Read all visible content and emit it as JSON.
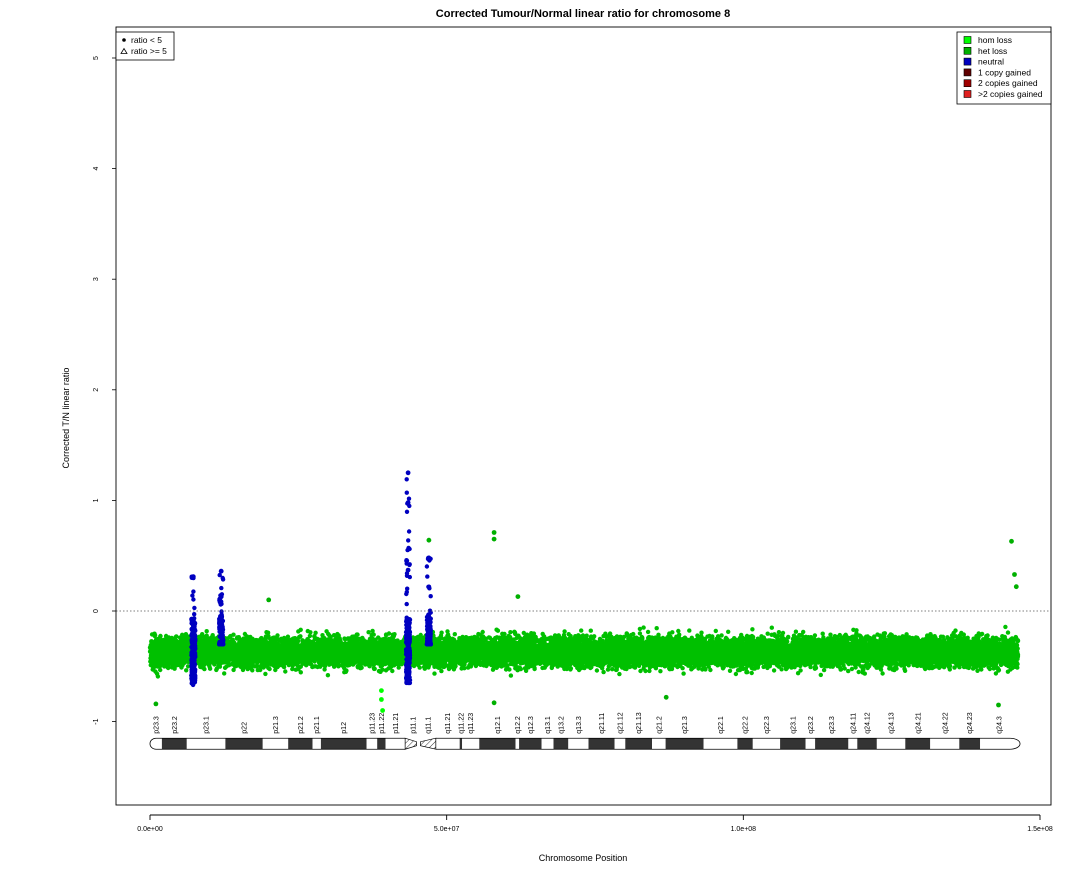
{
  "chart_data": {
    "type": "scatter",
    "title": "Corrected Tumour/Normal linear ratio for chromosome  8",
    "xlabel": "Chromosome Position",
    "ylabel": "Corrected T/N linear ratio",
    "xlim": [
      0,
      150000000
    ],
    "ylim": [
      -1.7,
      5.25
    ],
    "x_ticks": [
      0,
      50000000,
      100000000,
      150000000
    ],
    "x_tick_labels": [
      "0.0e+00",
      "5.0e+07",
      "1.0e+08",
      "1.5e+08"
    ],
    "y_ticks": [
      -1,
      0,
      1,
      2,
      3,
      4,
      5
    ],
    "y_tick_labels": [
      "-1",
      "0",
      "1",
      "2",
      "3",
      "4",
      "5"
    ],
    "reference_line_y": 0,
    "grid": false,
    "chromosome_length": 146300000,
    "centromere": [
      43000000,
      47500000
    ],
    "bulk_band": {
      "x_range": [
        0,
        146300000
      ],
      "y_range": [
        -0.65,
        -0.1
      ],
      "y_center": -0.37,
      "color": "#00c000",
      "category": "het loss"
    },
    "neutral_clusters": [
      {
        "x": 7300000,
        "y_range": [
          -0.85,
          0.31
        ]
      },
      {
        "x": 12000000,
        "y_range": [
          -0.3,
          0.36
        ]
      },
      {
        "x": 43500000,
        "y_range": [
          -0.65,
          1.25
        ]
      },
      {
        "x": 47000000,
        "y_range": [
          -0.3,
          0.48
        ]
      }
    ],
    "highlight_points": [
      {
        "x": 43500000,
        "y": 1.25,
        "category": "neutral"
      },
      {
        "x": 43500000,
        "y": 0.98,
        "category": "neutral"
      },
      {
        "x": 43500000,
        "y": 0.37,
        "category": "neutral"
      },
      {
        "x": 47000000,
        "y": 0.48,
        "category": "neutral"
      },
      {
        "x": 7300000,
        "y": 0.31,
        "category": "neutral"
      },
      {
        "x": 12000000,
        "y": 0.36,
        "category": "neutral"
      },
      {
        "x": 58000000,
        "y": 0.71,
        "category": "het loss"
      },
      {
        "x": 58000000,
        "y": 0.65,
        "category": "het loss"
      },
      {
        "x": 47000000,
        "y": 0.64,
        "category": "het loss"
      },
      {
        "x": 145200000,
        "y": 0.63,
        "category": "het loss"
      },
      {
        "x": 145700000,
        "y": 0.33,
        "category": "het loss"
      },
      {
        "x": 146000000,
        "y": 0.22,
        "category": "het loss"
      },
      {
        "x": 20000000,
        "y": 0.1,
        "category": "het loss"
      },
      {
        "x": 62000000,
        "y": 0.13,
        "category": "het loss"
      },
      {
        "x": 39000000,
        "y": -0.72,
        "category": "hom loss"
      },
      {
        "x": 39000000,
        "y": -0.8,
        "category": "hom loss"
      },
      {
        "x": 39200000,
        "y": -0.9,
        "category": "hom loss"
      },
      {
        "x": 1000000,
        "y": -0.84,
        "category": "het loss"
      },
      {
        "x": 58000000,
        "y": -0.83,
        "category": "het loss"
      },
      {
        "x": 87000000,
        "y": -0.78,
        "category": "het loss"
      },
      {
        "x": 143000000,
        "y": -0.85,
        "category": "het loss"
      }
    ],
    "markers_legend": {
      "position": "top-left",
      "entries": [
        {
          "label": "ratio < 5",
          "shape": "dot"
        },
        {
          "label": "ratio >= 5",
          "shape": "triangle"
        }
      ]
    },
    "legend": {
      "position": "top-right",
      "entries": [
        {
          "label": "hom loss",
          "color": "#00ff00"
        },
        {
          "label": "het loss",
          "color": "#00b000"
        },
        {
          "label": "neutral",
          "color": "#0000c0"
        },
        {
          "label": "1 copy gained",
          "color": "#600000"
        },
        {
          "label": "2 copies gained",
          "color": "#a00000"
        },
        {
          "label": ">2 copies gained",
          "color": "#e02020"
        }
      ]
    },
    "ideogram": {
      "y": -1.2,
      "bands": [
        {
          "name": "p23.3",
          "start": 0,
          "end": 2000000,
          "stain": "gneg"
        },
        {
          "name": "p23.2",
          "start": 2000000,
          "end": 6200000,
          "stain": "gpos"
        },
        {
          "name": "p23.1",
          "start": 6200000,
          "end": 12700000,
          "stain": "gneg"
        },
        {
          "name": "p22",
          "start": 12700000,
          "end": 19000000,
          "stain": "gpos"
        },
        {
          "name": "p21.3",
          "start": 19000000,
          "end": 23300000,
          "stain": "gneg"
        },
        {
          "name": "p21.2",
          "start": 23300000,
          "end": 27400000,
          "stain": "gpos"
        },
        {
          "name": "p21.1",
          "start": 27400000,
          "end": 28800000,
          "stain": "gneg"
        },
        {
          "name": "p12",
          "start": 28800000,
          "end": 36500000,
          "stain": "gpos"
        },
        {
          "name": "p11.23",
          "start": 36500000,
          "end": 38300000,
          "stain": "gneg"
        },
        {
          "name": "p11.22",
          "start": 38300000,
          "end": 39700000,
          "stain": "gpos"
        },
        {
          "name": "p11.21",
          "start": 39700000,
          "end": 43100000,
          "stain": "gneg"
        },
        {
          "name": "p11.1",
          "start": 43100000,
          "end": 45600000,
          "stain": "acen"
        },
        {
          "name": "q11.1",
          "start": 45600000,
          "end": 48100000,
          "stain": "acen"
        },
        {
          "name": "q11.21",
          "start": 48100000,
          "end": 52200000,
          "stain": "gneg"
        },
        {
          "name": "q11.22",
          "start": 52200000,
          "end": 52600000,
          "stain": "gpos"
        },
        {
          "name": "q11.23",
          "start": 52600000,
          "end": 55500000,
          "stain": "gneg"
        },
        {
          "name": "q12.1",
          "start": 55500000,
          "end": 61600000,
          "stain": "gpos"
        },
        {
          "name": "q12.2",
          "start": 61600000,
          "end": 62200000,
          "stain": "gneg"
        },
        {
          "name": "q12.3",
          "start": 62200000,
          "end": 66000000,
          "stain": "gpos"
        },
        {
          "name": "q13.1",
          "start": 66000000,
          "end": 68000000,
          "stain": "gneg"
        },
        {
          "name": "q13.2",
          "start": 68000000,
          "end": 70500000,
          "stain": "gpos"
        },
        {
          "name": "q13.3",
          "start": 70500000,
          "end": 73900000,
          "stain": "gneg"
        },
        {
          "name": "q21.11",
          "start": 73900000,
          "end": 78300000,
          "stain": "gpos"
        },
        {
          "name": "q21.12",
          "start": 78300000,
          "end": 80100000,
          "stain": "gneg"
        },
        {
          "name": "q21.13",
          "start": 80100000,
          "end": 84600000,
          "stain": "gpos"
        },
        {
          "name": "q21.2",
          "start": 84600000,
          "end": 86900000,
          "stain": "gneg"
        },
        {
          "name": "q21.3",
          "start": 86900000,
          "end": 93300000,
          "stain": "gpos"
        },
        {
          "name": "q22.1",
          "start": 93300000,
          "end": 99000000,
          "stain": "gneg"
        },
        {
          "name": "q22.2",
          "start": 99000000,
          "end": 101600000,
          "stain": "gpos"
        },
        {
          "name": "q22.3",
          "start": 101600000,
          "end": 106200000,
          "stain": "gneg"
        },
        {
          "name": "q23.1",
          "start": 106200000,
          "end": 110500000,
          "stain": "gpos"
        },
        {
          "name": "q23.2",
          "start": 110500000,
          "end": 112100000,
          "stain": "gneg"
        },
        {
          "name": "q23.3",
          "start": 112100000,
          "end": 117700000,
          "stain": "gpos"
        },
        {
          "name": "q24.11",
          "start": 117700000,
          "end": 119200000,
          "stain": "gneg"
        },
        {
          "name": "q24.12",
          "start": 119200000,
          "end": 122500000,
          "stain": "gpos"
        },
        {
          "name": "q24.13",
          "start": 122500000,
          "end": 127300000,
          "stain": "gneg"
        },
        {
          "name": "q24.21",
          "start": 127300000,
          "end": 131500000,
          "stain": "gpos"
        },
        {
          "name": "q24.22",
          "start": 131500000,
          "end": 136400000,
          "stain": "gneg"
        },
        {
          "name": "q24.23",
          "start": 136400000,
          "end": 139900000,
          "stain": "gpos"
        },
        {
          "name": "q24.3",
          "start": 139900000,
          "end": 146300000,
          "stain": "gneg"
        }
      ]
    }
  }
}
